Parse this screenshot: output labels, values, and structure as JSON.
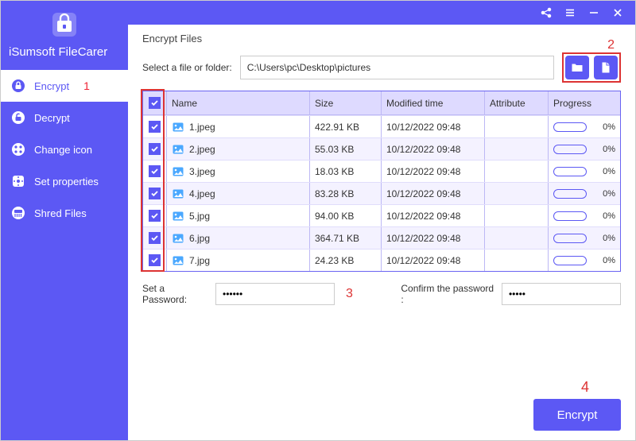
{
  "colors": {
    "primary": "#5c58f4",
    "annotation": "#d33",
    "header_bg": "#dedaff",
    "row_alt": "#f4f2ff"
  },
  "brand": {
    "title": "iSumsoft FileCarer"
  },
  "titlebar": {
    "share_title": "Share",
    "menu_title": "Menu",
    "min_title": "Minimize",
    "close_title": "Close"
  },
  "sidebar": {
    "items": [
      {
        "label": "Encrypt",
        "active": true,
        "annotation": "1"
      },
      {
        "label": "Decrypt"
      },
      {
        "label": "Change icon"
      },
      {
        "label": "Set properties"
      },
      {
        "label": "Shred Files"
      }
    ]
  },
  "main": {
    "section_title": "Encrypt Files",
    "path_label": "Select a file or folder:",
    "path_value": "C:\\Users\\pc\\Desktop\\pictures",
    "folder_btn_title": "Browse folder",
    "file_btn_title": "Browse file",
    "annotation2": "2"
  },
  "table": {
    "headers": {
      "name": "Name",
      "size": "Size",
      "time": "Modified time",
      "attr": "Attribute",
      "prog": "Progress"
    },
    "rows": [
      {
        "checked": true,
        "name": "1.jpeg",
        "size": "422.91 KB",
        "time": "10/12/2022 09:48",
        "attr": "",
        "pct": "0%"
      },
      {
        "checked": true,
        "name": "2.jpeg",
        "size": "55.03 KB",
        "time": "10/12/2022 09:48",
        "attr": "",
        "pct": "0%"
      },
      {
        "checked": true,
        "name": "3.jpeg",
        "size": "18.03 KB",
        "time": "10/12/2022 09:48",
        "attr": "",
        "pct": "0%"
      },
      {
        "checked": true,
        "name": "4.jpeg",
        "size": "83.28 KB",
        "time": "10/12/2022 09:48",
        "attr": "",
        "pct": "0%"
      },
      {
        "checked": true,
        "name": "5.jpg",
        "size": "94.00 KB",
        "time": "10/12/2022 09:48",
        "attr": "",
        "pct": "0%"
      },
      {
        "checked": true,
        "name": "6.jpg",
        "size": "364.71 KB",
        "time": "10/12/2022 09:48",
        "attr": "",
        "pct": "0%"
      },
      {
        "checked": true,
        "name": "7.jpg",
        "size": "24.23 KB",
        "time": "10/12/2022 09:48",
        "attr": "",
        "pct": "0%"
      }
    ]
  },
  "password": {
    "set_label": "Set a Password:",
    "confirm_label": "Confirm the password :",
    "set_value": "••••••",
    "confirm_value": "•••••",
    "annotation3": "3"
  },
  "action": {
    "annotation4": "4",
    "button_label": "Encrypt"
  }
}
